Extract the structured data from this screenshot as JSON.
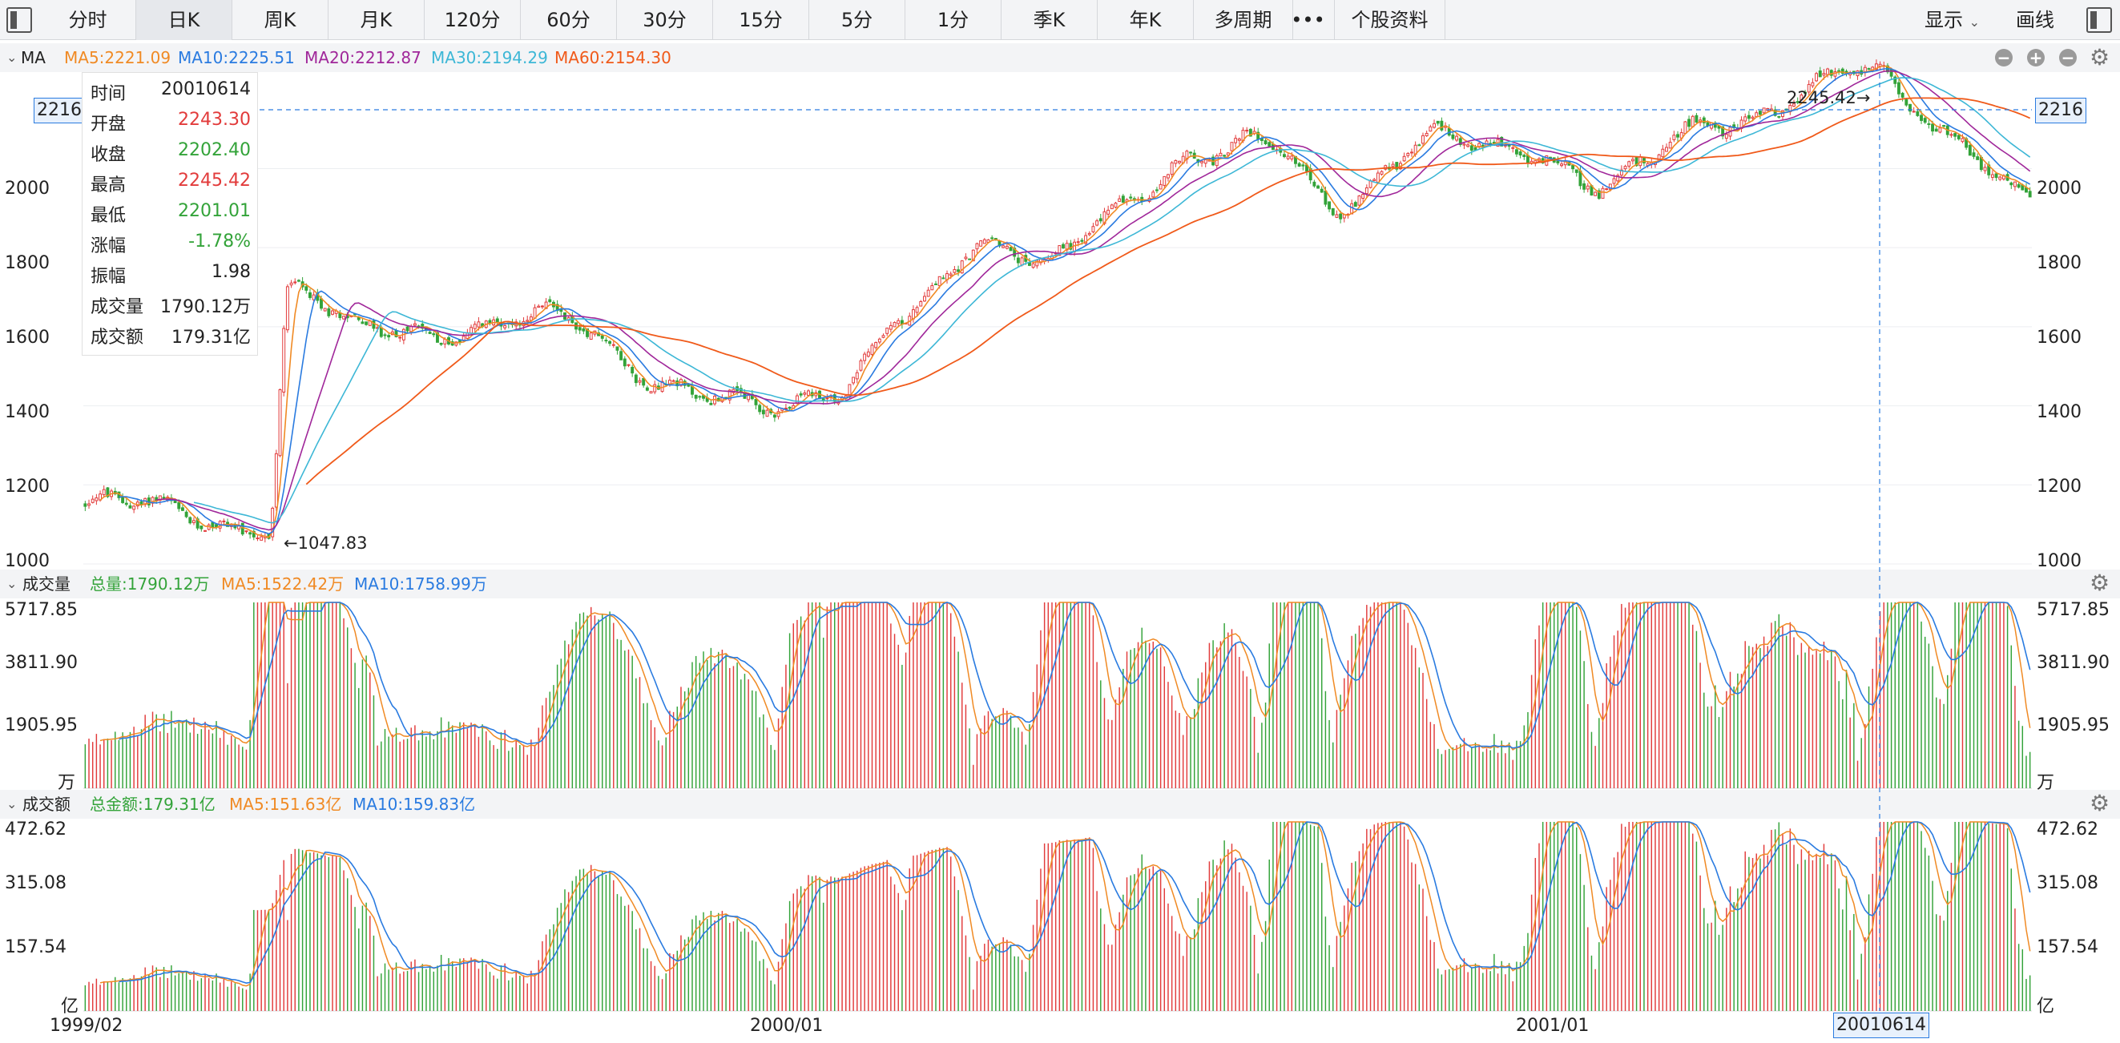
{
  "toolbar": {
    "tabs": [
      "分时",
      "日K",
      "周K",
      "月K",
      "120分",
      "60分",
      "30分",
      "15分",
      "5分",
      "1分",
      "季K",
      "年K",
      "多周期"
    ],
    "active_tab": "日K",
    "more": "•••",
    "stock_info": "个股资料",
    "display": "显示",
    "draw": "画线"
  },
  "ma_panel": {
    "label": "MA",
    "ma5": "MA5:2221.09",
    "ma10": "MA10:2225.51",
    "ma20": "MA20:2212.87",
    "ma30": "MA30:2194.29",
    "ma60": "MA60:2154.30",
    "yticks": [
      "2000",
      "1800",
      "1600",
      "1400",
      "1200",
      "1000"
    ],
    "cursor_price": "2216",
    "high_label": "2245.42",
    "low_label": "1047.83"
  },
  "info": {
    "rows": [
      {
        "k": "时间",
        "v": "20010614",
        "c": "#222"
      },
      {
        "k": "开盘",
        "v": "2243.30",
        "c": "#e23b3b"
      },
      {
        "k": "收盘",
        "v": "2202.40",
        "c": "#33a339"
      },
      {
        "k": "最高",
        "v": "2245.42",
        "c": "#e23b3b"
      },
      {
        "k": "最低",
        "v": "2201.01",
        "c": "#33a339"
      },
      {
        "k": "涨幅",
        "v": "-1.78%",
        "c": "#33a339"
      },
      {
        "k": "振幅",
        "v": "1.98",
        "c": "#222"
      },
      {
        "k": "成交量",
        "v": "1790.12万",
        "c": "#222"
      },
      {
        "k": "成交额",
        "v": "179.31亿",
        "c": "#222"
      }
    ]
  },
  "volume_panel": {
    "label": "成交量",
    "total": "总量:1790.12万",
    "ma5": "MA5:1522.42万",
    "ma10": "MA10:1758.99万",
    "yticks": [
      "5717.85",
      "3811.90",
      "1905.95",
      "万"
    ]
  },
  "amount_panel": {
    "label": "成交额",
    "total": "总金额:179.31亿",
    "ma5": "MA5:151.63亿",
    "ma10": "MA10:159.83亿",
    "yticks": [
      "472.62",
      "315.08",
      "157.54",
      "亿"
    ]
  },
  "xaxis": {
    "labels": [
      "1999/02",
      "2000/01",
      "2001/01"
    ],
    "cursor_date": "20010614"
  },
  "colors": {
    "up": "#e23b3b",
    "down": "#33a339",
    "ma5": "#f08a24",
    "ma10": "#2a7be0",
    "ma20": "#a0279a",
    "ma30": "#3db7d6",
    "ma60": "#f05a1a"
  },
  "chart_data": {
    "type": "candlestick",
    "anchors": [
      {
        "x": "1999/02",
        "close": 1150
      },
      {
        "x": "1999/05",
        "close": 1100
      },
      {
        "x": "1999/06",
        "close": 1700
      },
      {
        "x": "1999/07",
        "close": 1580
      },
      {
        "x": "1999/08",
        "close": 1620
      },
      {
        "x": "1999/10",
        "close": 1470
      },
      {
        "x": "1999/12",
        "close": 1370
      },
      {
        "x": "2000/01",
        "close": 1430
      },
      {
        "x": "2000/02",
        "close": 1650
      },
      {
        "x": "2000/03",
        "close": 1780
      },
      {
        "x": "2000/04",
        "close": 1760
      },
      {
        "x": "2000/05",
        "close": 1920
      },
      {
        "x": "2000/06",
        "close": 2000
      },
      {
        "x": "2000/08",
        "close": 2080
      },
      {
        "x": "2000/09",
        "close": 1920
      },
      {
        "x": "2000/11",
        "close": 2070
      },
      {
        "x": "2001/01",
        "close": 2060
      },
      {
        "x": "2001/02",
        "close": 1940
      },
      {
        "x": "2001/04",
        "close": 2130
      },
      {
        "x": "2001/06",
        "close": 2230
      },
      {
        "x": "2001/07",
        "close": 2100
      },
      {
        "x": "2001/08",
        "close": 1920
      }
    ],
    "price_ylim": [
      1000,
      2245.42
    ],
    "volume_ylim_wan": [
      0,
      5717.85
    ],
    "amount_ylim_yi": [
      0,
      472.62
    ],
    "high": 2245.42,
    "low": 1047.83
  }
}
